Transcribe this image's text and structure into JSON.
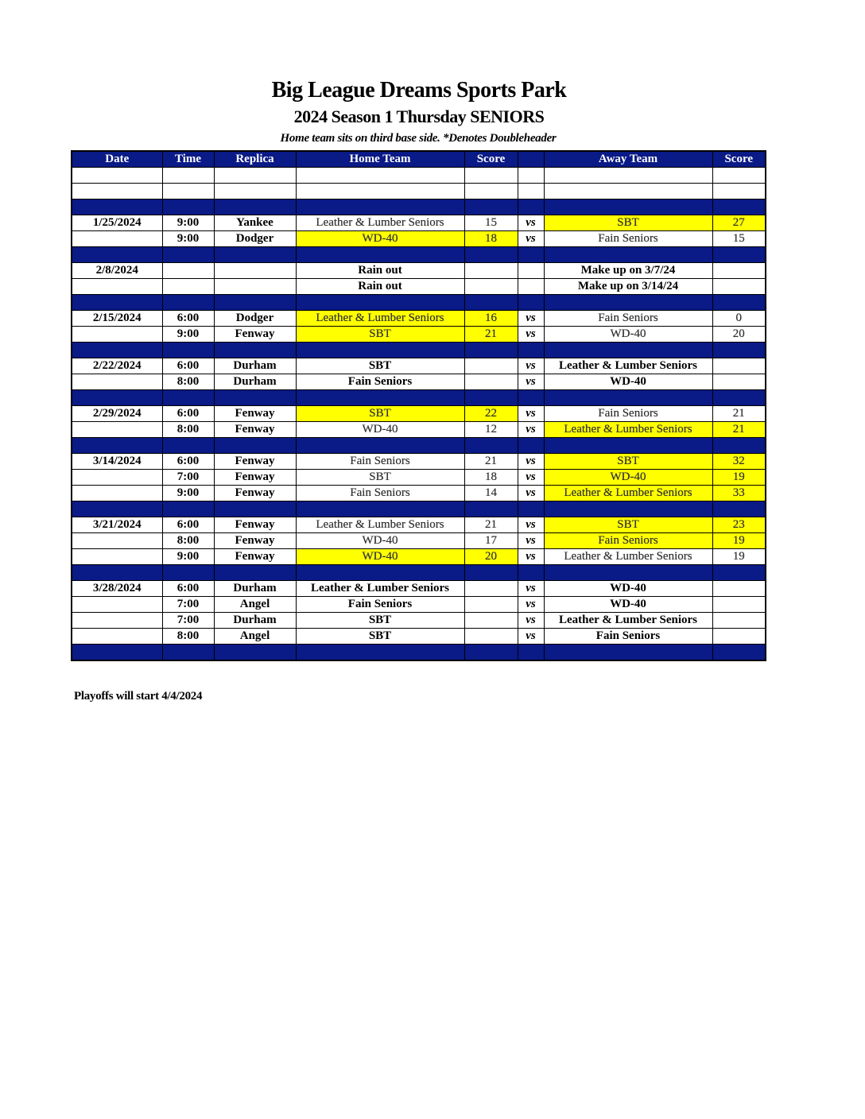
{
  "title": "Big League Dreams Sports Park",
  "subtitle": "2024 Season 1 Thursday SENIORS",
  "note": "Home team sits on third base side.  *Denotes Doubleheader",
  "colors": {
    "header_bg": "#0a1a86",
    "header_text": "#ffffff",
    "winner_highlight": "#ffff00"
  },
  "columns": [
    "Date",
    "Time",
    "Replica",
    "Home Team",
    "Score",
    "",
    "Away Team",
    "Score"
  ],
  "rows": [
    {
      "type": "blank"
    },
    {
      "type": "blank"
    },
    {
      "type": "sep"
    },
    {
      "type": "game",
      "date": "1/25/2024",
      "time": "9:00",
      "replica": "Yankee",
      "home": "Leather & Lumber Seniors",
      "home_score": "15",
      "vs": "vs",
      "away": "SBT",
      "away_score": "27",
      "winner": "away",
      "played": true
    },
    {
      "type": "game",
      "date": "",
      "time": "9:00",
      "replica": "Dodger",
      "home": "WD-40",
      "home_score": "18",
      "vs": "vs",
      "away": "Fain Seniors",
      "away_score": "15",
      "winner": "home",
      "played": true
    },
    {
      "type": "sep"
    },
    {
      "type": "game",
      "date": "2/8/2024",
      "time": "",
      "replica": "",
      "home": "Rain out",
      "home_score": "",
      "vs": "",
      "away": "Make up on 3/7/24",
      "away_score": "",
      "winner": null,
      "played": false
    },
    {
      "type": "game",
      "date": "",
      "time": "",
      "replica": "",
      "home": "Rain out",
      "home_score": "",
      "vs": "",
      "away": "Make up on 3/14/24",
      "away_score": "",
      "winner": null,
      "played": false
    },
    {
      "type": "sep"
    },
    {
      "type": "game",
      "date": "2/15/2024",
      "time": "6:00",
      "replica": "Dodger",
      "home": "Leather & Lumber Seniors",
      "home_score": "16",
      "vs": "vs",
      "away": "Fain Seniors",
      "away_score": "0",
      "winner": "home",
      "played": true
    },
    {
      "type": "game",
      "date": "",
      "time": "9:00",
      "replica": "Fenway",
      "home": "SBT",
      "home_score": "21",
      "vs": "vs",
      "away": "WD-40",
      "away_score": "20",
      "winner": "home",
      "played": true
    },
    {
      "type": "sep"
    },
    {
      "type": "game",
      "date": "2/22/2024",
      "time": "6:00",
      "replica": "Durham",
      "home": "SBT",
      "home_score": "",
      "vs": "vs",
      "away": "Leather & Lumber Seniors",
      "away_score": "",
      "winner": null,
      "played": false
    },
    {
      "type": "game",
      "date": "",
      "time": "8:00",
      "replica": "Durham",
      "home": "Fain Seniors",
      "home_score": "",
      "vs": "vs",
      "away": "WD-40",
      "away_score": "",
      "winner": null,
      "played": false
    },
    {
      "type": "sep"
    },
    {
      "type": "game",
      "date": "2/29/2024",
      "time": "6:00",
      "replica": "Fenway",
      "home": "SBT",
      "home_score": "22",
      "vs": "vs",
      "away": "Fain Seniors",
      "away_score": "21",
      "winner": "home",
      "played": true
    },
    {
      "type": "game",
      "date": "",
      "time": "8:00",
      "replica": "Fenway",
      "home": "WD-40",
      "home_score": "12",
      "vs": "vs",
      "away": "Leather & Lumber Seniors",
      "away_score": "21",
      "winner": "away",
      "played": true
    },
    {
      "type": "sep"
    },
    {
      "type": "game",
      "date": "3/14/2024",
      "time": "6:00",
      "replica": "Fenway",
      "home": "Fain Seniors",
      "home_score": "21",
      "vs": "vs",
      "away": "SBT",
      "away_score": "32",
      "winner": "away",
      "played": true
    },
    {
      "type": "game",
      "date": "",
      "time": "7:00",
      "replica": "Fenway",
      "home": "SBT",
      "home_score": "18",
      "vs": "vs",
      "away": "WD-40",
      "away_score": "19",
      "winner": "away",
      "played": true
    },
    {
      "type": "game",
      "date": "",
      "time": "9:00",
      "replica": "Fenway",
      "home": "Fain Seniors",
      "home_score": "14",
      "vs": "vs",
      "away": "Leather & Lumber Seniors",
      "away_score": "33",
      "winner": "away",
      "played": true
    },
    {
      "type": "sep"
    },
    {
      "type": "game",
      "date": "3/21/2024",
      "time": "6:00",
      "replica": "Fenway",
      "home": "Leather & Lumber Seniors",
      "home_score": "21",
      "vs": "vs",
      "away": "SBT",
      "away_score": "23",
      "winner": "away",
      "played": true
    },
    {
      "type": "game",
      "date": "",
      "time": "8:00",
      "replica": "Fenway",
      "home": "WD-40",
      "home_score": "17",
      "vs": "vs",
      "away": "Fain Seniors",
      "away_score": "19",
      "winner": "away",
      "played": true
    },
    {
      "type": "game",
      "date": "",
      "time": "9:00",
      "replica": "Fenway",
      "home": "WD-40",
      "home_score": "20",
      "vs": "vs",
      "away": "Leather & Lumber Seniors",
      "away_score": "19",
      "winner": "home",
      "played": true
    },
    {
      "type": "sep"
    },
    {
      "type": "game",
      "date": "3/28/2024",
      "time": "6:00",
      "replica": "Durham",
      "home": "Leather & Lumber Seniors",
      "home_score": "",
      "vs": "vs",
      "away": "WD-40",
      "away_score": "",
      "winner": null,
      "played": false
    },
    {
      "type": "game",
      "date": "",
      "time": "7:00",
      "replica": "Angel",
      "home": "Fain Seniors",
      "home_score": "",
      "vs": "vs",
      "away": "WD-40",
      "away_score": "",
      "winner": null,
      "played": false
    },
    {
      "type": "game",
      "date": "",
      "time": "7:00",
      "replica": "Durham",
      "home": "SBT",
      "home_score": "",
      "vs": "vs",
      "away": "Leather & Lumber Seniors",
      "away_score": "",
      "winner": null,
      "played": false
    },
    {
      "type": "game",
      "date": "",
      "time": "8:00",
      "replica": "Angel",
      "home": "SBT",
      "home_score": "",
      "vs": "vs",
      "away": "Fain Seniors",
      "away_score": "",
      "winner": null,
      "played": false
    },
    {
      "type": "sep"
    }
  ],
  "footer": "Playoffs will start 4/4/2024"
}
